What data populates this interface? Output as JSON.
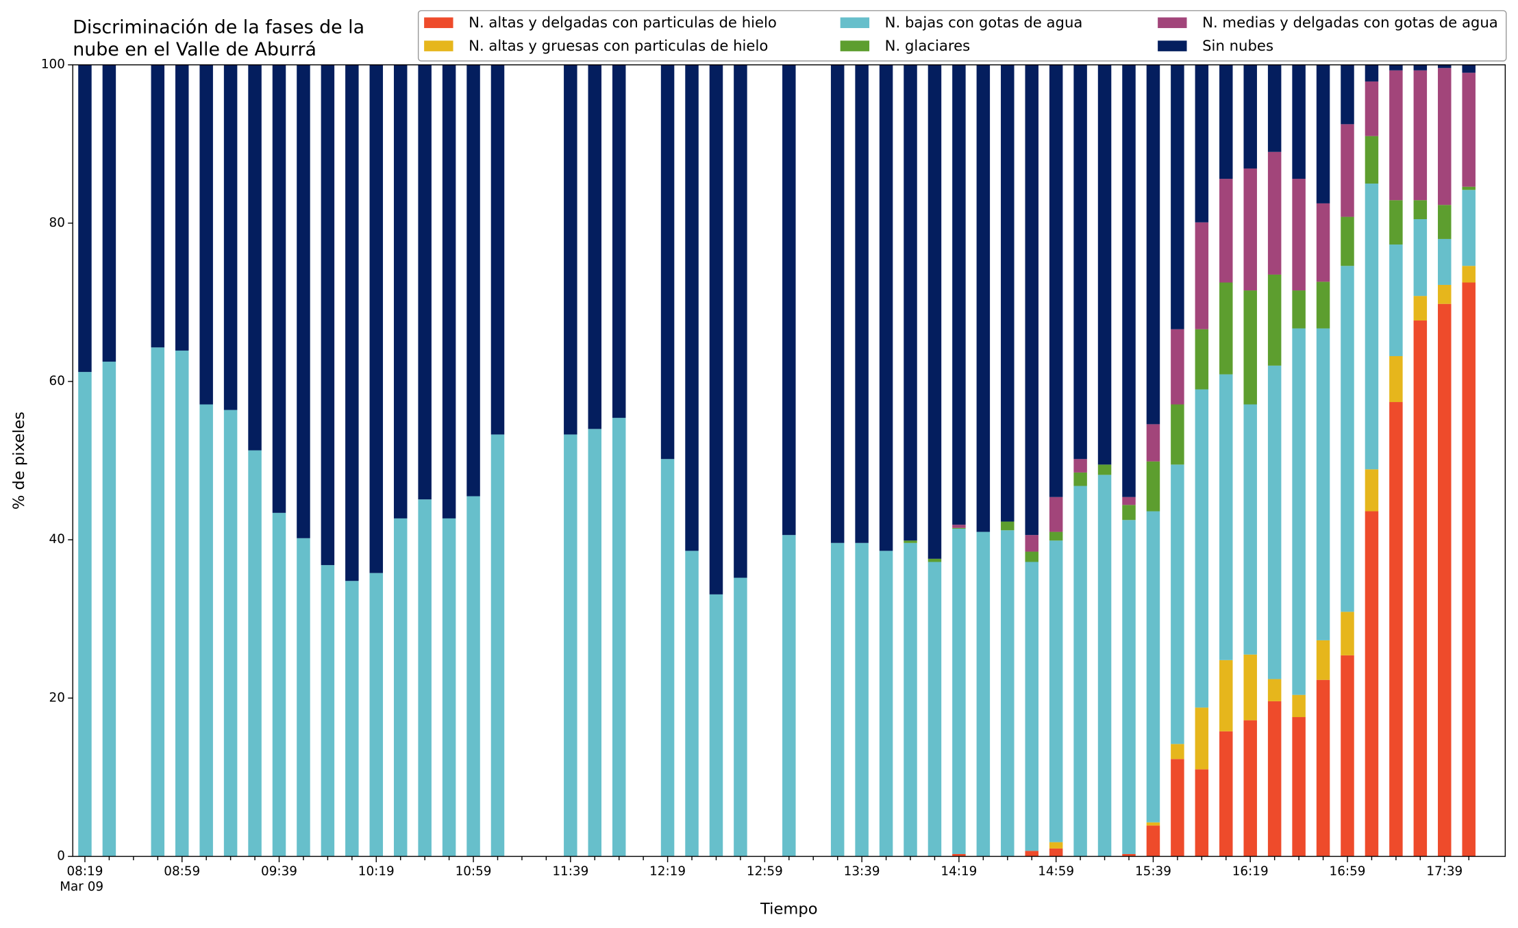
{
  "chart_data": {
    "type": "bar",
    "stacked": true,
    "title": [
      "Discriminación de la fases de la",
      "nube en el Valle de Aburrá"
    ],
    "xlabel": "Tiempo",
    "ylabel": "% de pixeles",
    "x_date_label": "Mar 09",
    "categories": [
      "08:19",
      null,
      null,
      null,
      "08:59",
      null,
      null,
      null,
      "09:39",
      null,
      null,
      null,
      "10:19",
      null,
      null,
      null,
      "10:59",
      null,
      null,
      null,
      "11:39",
      null,
      null,
      null,
      "12:19",
      null,
      null,
      null,
      "12:59",
      null,
      null,
      null,
      "13:39",
      null,
      null,
      null,
      "14:19",
      null,
      null,
      null,
      "14:59",
      null,
      null,
      null,
      "15:39",
      null,
      null,
      null,
      "16:19",
      null,
      null,
      null,
      "16:59",
      null,
      null,
      null,
      "17:39",
      null
    ],
    "ylim": [
      0,
      100
    ],
    "yticks": [
      0,
      20,
      40,
      60,
      80,
      100
    ],
    "legend": "top",
    "series": [
      {
        "name": "N. altas y delgadas con particulas de hielo",
        "color": "#ee4b2b",
        "values": [
          0,
          0,
          null,
          0,
          0,
          0,
          0,
          0,
          0,
          0,
          0,
          0,
          0,
          0,
          0,
          0,
          0,
          0,
          null,
          null,
          0,
          0,
          0,
          null,
          0,
          0,
          0,
          0,
          null,
          0,
          null,
          0,
          0,
          0,
          0,
          0,
          0.3,
          0,
          0,
          0.7,
          1.0,
          0,
          0,
          0.3,
          3.9,
          12.3,
          11.0,
          15.8,
          17.2,
          19.6,
          17.6,
          22.3,
          25.4,
          43.6,
          57.4,
          67.7,
          69.8,
          72.5
        ]
      },
      {
        "name": "N. altas y gruesas con particulas de hielo",
        "color": "#e6b61c",
        "values": [
          0,
          0,
          null,
          0,
          0,
          0,
          0,
          0,
          0,
          0,
          0,
          0,
          0,
          0,
          0,
          0,
          0,
          0,
          null,
          null,
          0,
          0,
          0,
          null,
          0,
          0,
          0,
          0,
          null,
          0,
          null,
          0,
          0,
          0,
          0,
          0,
          0,
          0,
          0,
          0,
          0.8,
          0,
          0,
          0,
          0.4,
          1.9,
          7.8,
          9.0,
          8.3,
          2.8,
          2.8,
          5.0,
          5.5,
          5.3,
          5.8,
          3.1,
          2.4,
          2.1
        ]
      },
      {
        "name": "N. bajas con gotas de agua",
        "color": "#67bfcb",
        "values": [
          61.2,
          62.5,
          null,
          64.3,
          63.9,
          57.1,
          56.4,
          51.3,
          43.4,
          40.2,
          36.8,
          34.8,
          35.8,
          42.7,
          45.1,
          42.7,
          45.5,
          53.3,
          null,
          null,
          53.3,
          54.0,
          55.4,
          null,
          50.2,
          38.6,
          33.1,
          35.2,
          null,
          40.6,
          null,
          39.6,
          39.6,
          38.6,
          39.6,
          37.2,
          41.1,
          41.0,
          41.2,
          36.5,
          38.1,
          46.8,
          48.2,
          42.2,
          39.3,
          35.3,
          40.2,
          36.1,
          31.6,
          39.6,
          46.3,
          39.4,
          43.7,
          36.1,
          14.1,
          9.7,
          5.8,
          9.6
        ]
      },
      {
        "name": "N. glaciares",
        "color": "#5d9e2f",
        "values": [
          0,
          0,
          null,
          0,
          0,
          0,
          0,
          0,
          0,
          0,
          0,
          0,
          0,
          0,
          0,
          0,
          0,
          0,
          null,
          null,
          0,
          0,
          0,
          null,
          0,
          0,
          0,
          0,
          null,
          0,
          null,
          0,
          0,
          0,
          0.3,
          0.4,
          0.1,
          0,
          1.1,
          1.3,
          1.1,
          1.7,
          1.3,
          1.9,
          6.3,
          7.6,
          7.6,
          11.6,
          14.4,
          11.5,
          4.8,
          5.9,
          6.2,
          6.0,
          5.6,
          2.4,
          4.3,
          0.4
        ]
      },
      {
        "name": "N. medias y delgadas con gotas de agua",
        "color": "#a2457a",
        "values": [
          0,
          0,
          null,
          0,
          0,
          0,
          0,
          0,
          0,
          0,
          0,
          0,
          0,
          0,
          0,
          0,
          0,
          0,
          null,
          null,
          0,
          0,
          0,
          null,
          0,
          0,
          0,
          0,
          null,
          0,
          null,
          0,
          0,
          0,
          0,
          0,
          0.4,
          0,
          0,
          2.1,
          4.4,
          1.7,
          0,
          1.0,
          4.7,
          9.5,
          13.5,
          13.1,
          15.4,
          15.5,
          14.1,
          9.9,
          11.7,
          6.9,
          16.4,
          16.4,
          17.3,
          14.4
        ]
      },
      {
        "name": "Sin nubes",
        "color": "#041e5e",
        "values": [
          38.8,
          37.5,
          null,
          35.7,
          36.1,
          42.9,
          43.6,
          48.7,
          56.6,
          59.8,
          63.2,
          65.2,
          64.2,
          57.3,
          54.9,
          57.3,
          54.5,
          46.7,
          null,
          null,
          46.7,
          46.0,
          44.6,
          null,
          49.8,
          61.4,
          66.9,
          64.8,
          null,
          59.4,
          null,
          60.4,
          60.4,
          61.4,
          60.1,
          62.4,
          58.1,
          59.0,
          57.7,
          59.4,
          54.6,
          49.8,
          50.5,
          54.6,
          45.4,
          33.4,
          19.9,
          14.4,
          13.1,
          11.0,
          14.4,
          17.5,
          7.5,
          2.1,
          0.7,
          0.7,
          0.4,
          1.0
        ]
      }
    ]
  }
}
